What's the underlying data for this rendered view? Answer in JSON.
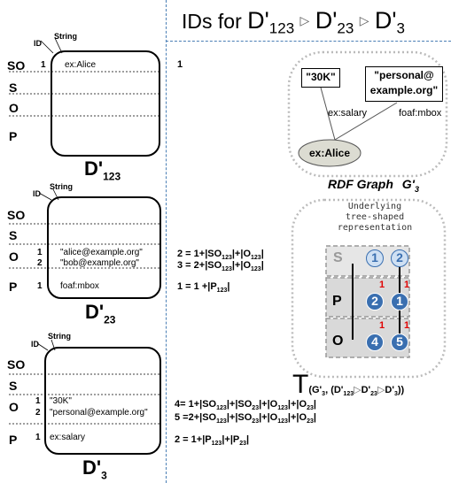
{
  "title": {
    "prefix": "IDs for ",
    "d1": "D'",
    "d1_sub": "123",
    "d2": "D'",
    "d2_sub": "23",
    "d3": "D'",
    "d3_sub": "3",
    "sep": "▷"
  },
  "header": {
    "id": "ID",
    "string": "String"
  },
  "rows": {
    "so": "SO",
    "s": "S",
    "o": "O",
    "p": "P"
  },
  "panels": [
    {
      "name": "D'",
      "sub": "123",
      "entries": [
        {
          "id": "1",
          "text": "ex:Alice"
        }
      ],
      "right_eqs": [
        {
          "text": "1"
        }
      ]
    },
    {
      "name": "D'",
      "sub": "23",
      "entries": [
        {
          "id": "1",
          "text": "\"alice@example.org\""
        },
        {
          "id": "2",
          "text": "\"bob@example.org\""
        },
        {
          "id": "1",
          "text": "foaf:mbox"
        }
      ]
    },
    {
      "name": "D'",
      "sub": "3",
      "entries": [
        {
          "id": "1",
          "text": "\"30K\""
        },
        {
          "id": "2",
          "text": "\"personal@example.org\""
        },
        {
          "id": "1",
          "text": "ex:salary"
        }
      ]
    }
  ],
  "equations": {
    "e2": {
      "a": "2 = 1+|SO",
      "s1": "123",
      "b": "|+|O",
      "s2": "123",
      "c": "|"
    },
    "e3": {
      "a": "3 = 2+|SO",
      "s1": "123",
      "b": "|+|O",
      "s2": "123",
      "c": "|"
    },
    "e1": {
      "a": "1 = 1 +|P",
      "s1": "123",
      "c": "|"
    },
    "e4": {
      "a": "4= 1+|SO",
      "s1": "123",
      "b": "|+|SO",
      "s2": "23",
      "c": "|+|O",
      "s3": "123",
      "d": "|+|O",
      "s4": "23",
      "e": "|"
    },
    "e5": {
      "a": "5 =2+|SO",
      "s1": "123",
      "b": "|+|SO",
      "s2": "23",
      "c": "|+|O",
      "s3": "123",
      "d": "|+|O",
      "s4": "23",
      "e": "|"
    },
    "e6": {
      "a": "2 = 1+|P",
      "s1": "123",
      "b": "|+|P",
      "s2": "23",
      "c": "|"
    }
  },
  "rdf": {
    "node_30k": "\"30K\"",
    "node_personal_1": "\"personal@",
    "node_personal_2": "example.org\"",
    "node_alice": "ex:Alice",
    "edge_salary": "ex:salary",
    "edge_mbox": "foaf:mbox",
    "caption": "RDF Graph",
    "caption_g": "G'",
    "caption_g_sub": "3"
  },
  "tree": {
    "title_lines": [
      "Underlying",
      "tree-shaped",
      "representation"
    ],
    "row_s": "S",
    "row_p": "P",
    "row_o": "O",
    "col1": [
      "1",
      "2",
      "4"
    ],
    "col2": [
      "2",
      "1",
      "5"
    ],
    "red_marks": [
      "1",
      "1",
      "1",
      "1"
    ],
    "caption_t": "T",
    "caption_rest": "(G'",
    "caption_sub3": "3",
    "caption_mid": ", (D'",
    "caption_sub123": "123",
    "caption_sep": "▷",
    "caption_d23": "D'",
    "caption_sub23": "23",
    "caption_d3": "D'",
    "caption_sub3b": "3",
    "caption_end": "))",
    "colors": {
      "node_fill": "#3a6fb0",
      "light_fill": "#cfe0f3",
      "grey_box": "#d9d9d9"
    }
  }
}
